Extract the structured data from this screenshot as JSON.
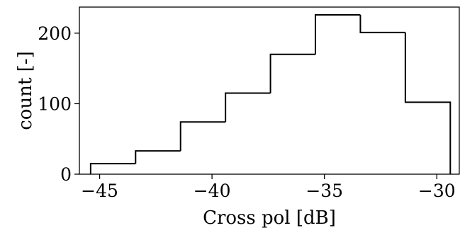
{
  "chart_data": {
    "type": "histogram",
    "title": "",
    "xlabel": "Cross pol [dB]",
    "ylabel": "count [-]",
    "xlim": [
      -45.9,
      -29.0
    ],
    "ylim": [
      0,
      237
    ],
    "bins": [
      {
        "x0": -45.4,
        "x1": -43.4,
        "count": 15
      },
      {
        "x0": -43.4,
        "x1": -41.4,
        "count": 33
      },
      {
        "x0": -41.4,
        "x1": -39.4,
        "count": 74
      },
      {
        "x0": -39.4,
        "x1": -37.4,
        "count": 115
      },
      {
        "x0": -37.4,
        "x1": -35.4,
        "count": 170
      },
      {
        "x0": -35.4,
        "x1": -33.4,
        "count": 226
      },
      {
        "x0": -33.4,
        "x1": -31.4,
        "count": 201
      },
      {
        "x0": -31.4,
        "x1": -29.4,
        "count": 102
      }
    ],
    "xticks": [
      -45,
      -40,
      -35,
      -30
    ],
    "xtick_labels": [
      "−45",
      "−40",
      "−35",
      "−30"
    ],
    "yticks": [
      0,
      100,
      200
    ],
    "ytick_labels": [
      "0",
      "100",
      "200"
    ],
    "histtype": "step",
    "line_color": "#000000",
    "grid": false
  }
}
